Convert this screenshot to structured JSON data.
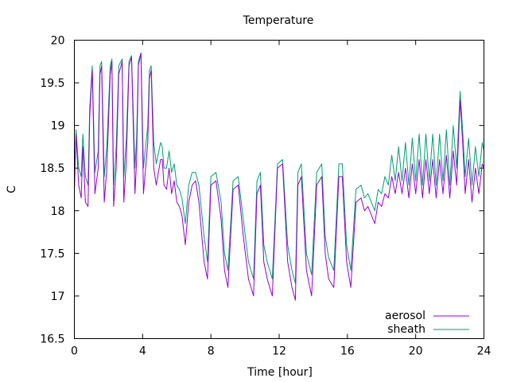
{
  "chart_data": {
    "type": "line",
    "title": "Temperature",
    "xlabel": "Time [hour]",
    "ylabel": "C",
    "xlim": [
      0,
      24
    ],
    "ylim": [
      16.5,
      20
    ],
    "xticks": [
      0,
      4,
      8,
      12,
      16,
      20,
      24
    ],
    "yticks": [
      16.5,
      17,
      17.5,
      18,
      18.5,
      19,
      19.5,
      20
    ],
    "ytick_labels": [
      "16.5",
      "17",
      "17.5",
      "18",
      "18.5",
      "19",
      "19.5",
      "20"
    ],
    "grid": false,
    "legend_position": "bottom-right",
    "series": [
      {
        "name": "aerosol",
        "color": "#9400d3",
        "x": [
          0.0,
          0.1,
          0.25,
          0.4,
          0.5,
          0.65,
          0.8,
          0.9,
          1.05,
          1.2,
          1.4,
          1.5,
          1.6,
          1.75,
          1.9,
          2.1,
          2.2,
          2.3,
          2.45,
          2.6,
          2.8,
          2.9,
          3.05,
          3.2,
          3.35,
          3.55,
          3.65,
          3.75,
          3.9,
          4.05,
          4.3,
          4.4,
          4.5,
          4.65,
          4.8,
          5.05,
          5.15,
          5.25,
          5.4,
          5.55,
          5.7,
          5.85,
          6.0,
          6.15,
          6.3,
          6.5,
          6.7,
          6.9,
          7.1,
          7.3,
          7.6,
          7.8,
          8.0,
          8.3,
          8.6,
          8.8,
          9.0,
          9.3,
          9.6,
          9.9,
          10.2,
          10.5,
          10.7,
          10.9,
          11.1,
          11.3,
          11.6,
          11.9,
          12.2,
          12.5,
          12.75,
          12.95,
          13.1,
          13.3,
          13.6,
          13.9,
          14.2,
          14.5,
          14.7,
          14.9,
          15.2,
          15.5,
          15.7,
          15.95,
          16.2,
          16.5,
          16.8,
          17.0,
          17.2,
          17.4,
          17.6,
          17.8,
          18.0,
          18.2,
          18.4,
          18.6,
          18.8,
          19.0,
          19.2,
          19.4,
          19.6,
          19.8,
          20.0,
          20.2,
          20.4,
          20.6,
          20.8,
          21.0,
          21.2,
          21.4,
          21.6,
          21.8,
          22.0,
          22.2,
          22.4,
          22.6,
          22.75,
          22.9,
          23.1,
          23.3,
          23.5,
          23.7,
          23.9,
          24.0
        ],
        "values": [
          18.2,
          18.9,
          18.3,
          18.15,
          18.75,
          18.1,
          18.05,
          19.1,
          19.65,
          18.2,
          18.5,
          19.6,
          19.7,
          18.1,
          18.5,
          19.6,
          19.75,
          18.05,
          18.5,
          19.6,
          19.75,
          18.1,
          18.6,
          19.7,
          19.8,
          18.2,
          18.6,
          19.7,
          19.85,
          18.2,
          18.8,
          19.55,
          19.65,
          18.5,
          18.3,
          18.6,
          18.6,
          18.3,
          18.25,
          18.5,
          18.2,
          18.35,
          18.1,
          18.05,
          17.95,
          17.6,
          18.1,
          18.3,
          18.35,
          18.1,
          17.4,
          17.2,
          18.3,
          18.35,
          17.9,
          17.3,
          17.1,
          18.25,
          18.3,
          17.7,
          17.2,
          17.0,
          18.2,
          18.3,
          17.4,
          17.2,
          17.0,
          18.5,
          18.55,
          17.4,
          17.1,
          16.95,
          18.3,
          18.4,
          17.3,
          17.0,
          18.3,
          18.4,
          17.5,
          17.2,
          17.1,
          18.4,
          18.4,
          17.4,
          17.1,
          18.1,
          18.15,
          18.0,
          18.05,
          17.95,
          17.85,
          18.1,
          18.05,
          18.2,
          18.15,
          18.4,
          18.2,
          18.45,
          18.2,
          18.5,
          18.15,
          18.55,
          18.2,
          18.6,
          18.15,
          18.6,
          18.2,
          18.6,
          18.15,
          18.6,
          18.2,
          18.65,
          18.15,
          18.7,
          18.3,
          19.3,
          18.8,
          18.2,
          18.6,
          18.1,
          18.5,
          18.2,
          18.55,
          18.5
        ]
      },
      {
        "name": "sheath",
        "color": "#009e73",
        "x": [
          0.0,
          0.1,
          0.25,
          0.4,
          0.5,
          0.65,
          0.8,
          0.9,
          1.05,
          1.2,
          1.4,
          1.5,
          1.6,
          1.75,
          1.9,
          2.1,
          2.2,
          2.3,
          2.45,
          2.6,
          2.8,
          2.9,
          3.05,
          3.2,
          3.35,
          3.55,
          3.65,
          3.75,
          3.9,
          4.05,
          4.3,
          4.4,
          4.5,
          4.65,
          4.8,
          5.05,
          5.15,
          5.25,
          5.4,
          5.55,
          5.7,
          5.85,
          6.0,
          6.15,
          6.3,
          6.5,
          6.7,
          6.9,
          7.1,
          7.3,
          7.6,
          7.8,
          8.0,
          8.3,
          8.6,
          8.8,
          9.0,
          9.3,
          9.6,
          9.9,
          10.2,
          10.5,
          10.7,
          10.9,
          11.1,
          11.3,
          11.6,
          11.9,
          12.2,
          12.5,
          12.75,
          12.95,
          13.1,
          13.3,
          13.6,
          13.9,
          14.2,
          14.5,
          14.7,
          14.9,
          15.2,
          15.5,
          15.7,
          15.95,
          16.2,
          16.5,
          16.8,
          17.0,
          17.2,
          17.4,
          17.6,
          17.8,
          18.0,
          18.2,
          18.4,
          18.6,
          18.8,
          19.0,
          19.2,
          19.4,
          19.6,
          19.8,
          20.0,
          20.2,
          20.4,
          20.6,
          20.8,
          21.0,
          21.2,
          21.4,
          21.6,
          21.8,
          22.0,
          22.2,
          22.4,
          22.6,
          22.75,
          22.9,
          23.1,
          23.3,
          23.5,
          23.7,
          23.9,
          24.0
        ],
        "values": [
          18.4,
          18.95,
          18.5,
          18.4,
          18.9,
          18.4,
          18.3,
          19.2,
          19.7,
          18.45,
          18.7,
          19.7,
          19.75,
          18.4,
          18.75,
          19.7,
          19.78,
          18.3,
          18.75,
          19.7,
          19.78,
          18.4,
          18.85,
          19.75,
          19.82,
          18.5,
          18.85,
          19.75,
          19.85,
          18.5,
          19.0,
          19.65,
          19.7,
          18.8,
          18.55,
          18.8,
          18.75,
          18.5,
          18.5,
          18.7,
          18.45,
          18.55,
          18.3,
          18.25,
          18.15,
          17.85,
          18.3,
          18.45,
          18.45,
          18.3,
          17.7,
          17.4,
          18.4,
          18.45,
          18.1,
          17.5,
          17.3,
          18.35,
          18.4,
          17.9,
          17.4,
          17.2,
          18.35,
          18.45,
          17.6,
          17.4,
          17.2,
          18.55,
          18.6,
          17.6,
          17.3,
          17.15,
          18.45,
          18.55,
          17.5,
          17.25,
          18.45,
          18.55,
          17.7,
          17.45,
          17.3,
          18.55,
          18.55,
          17.6,
          17.3,
          18.25,
          18.3,
          18.15,
          18.2,
          18.1,
          18.0,
          18.25,
          18.2,
          18.4,
          18.3,
          18.65,
          18.35,
          18.75,
          18.35,
          18.8,
          18.3,
          18.85,
          18.35,
          18.9,
          18.3,
          18.9,
          18.35,
          18.9,
          18.3,
          18.9,
          18.35,
          18.95,
          18.3,
          19.0,
          18.5,
          19.4,
          18.95,
          18.4,
          18.85,
          18.3,
          18.75,
          18.4,
          18.8,
          18.7
        ]
      }
    ]
  }
}
